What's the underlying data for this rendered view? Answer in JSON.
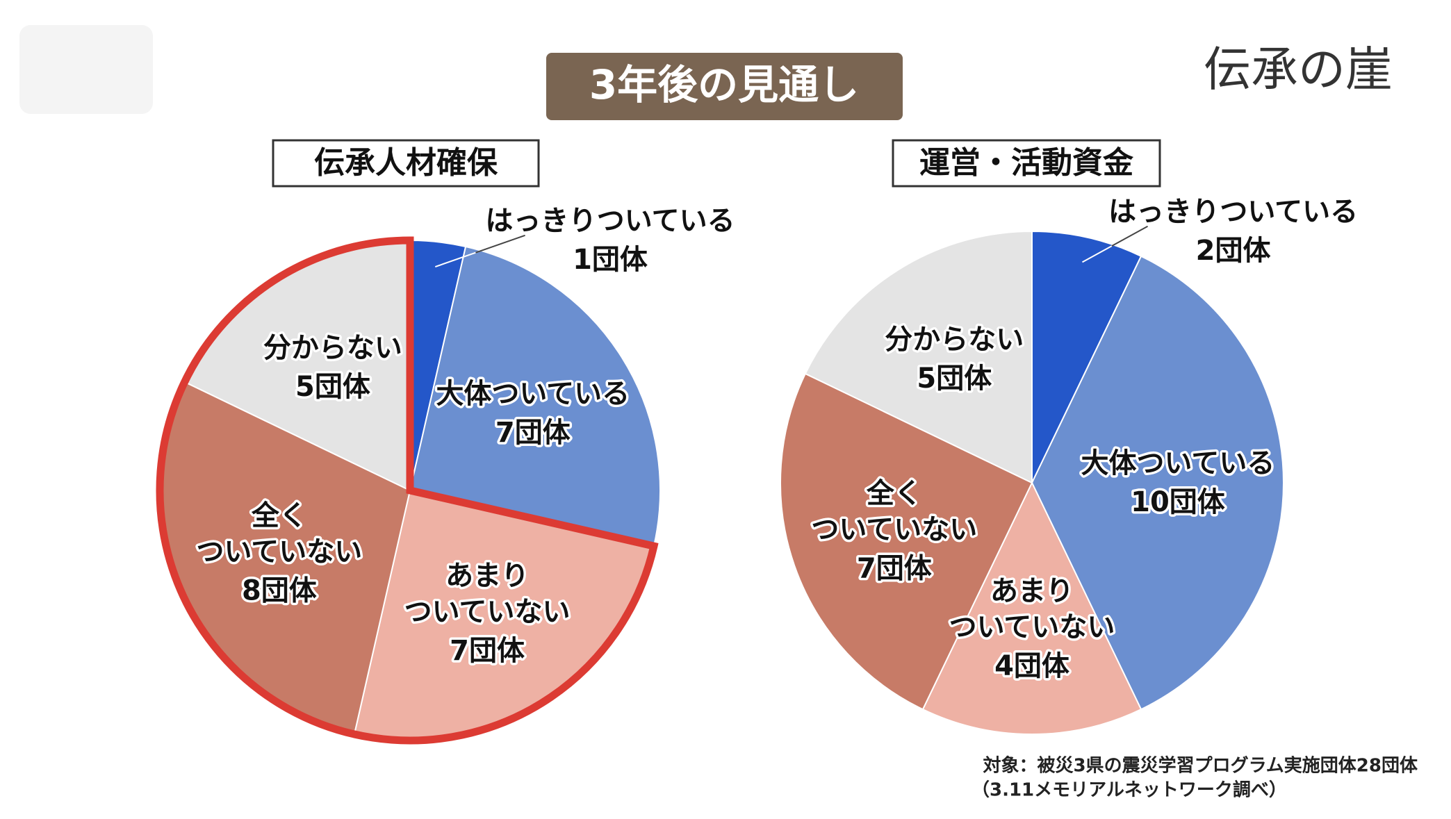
{
  "header": {
    "title": "3年後の見通し",
    "logo": "伝承の崖"
  },
  "chart_data": [
    {
      "type": "pie",
      "title": "伝承人材確保",
      "categories": [
        "はっきりついている",
        "大体ついている",
        "あまり\nついていない",
        "全く\nついていない",
        "分からない"
      ],
      "values": [
        1,
        7,
        7,
        8,
        5
      ],
      "value_labels": [
        "1団体",
        "7団体",
        "7団体",
        "8団体",
        "5団体"
      ],
      "colors": [
        "#2457c9",
        "#6b8fd0",
        "#eeb1a4",
        "#c77b67",
        "#e4e4e4"
      ],
      "highlighted": [
        false,
        false,
        true,
        true,
        true
      ],
      "highlight_color": "#dc3b33"
    },
    {
      "type": "pie",
      "title": "運営・活動資金",
      "categories": [
        "はっきりついている",
        "大体ついている",
        "あまり\nついていない",
        "全く\nついていない",
        "分からない"
      ],
      "values": [
        2,
        10,
        4,
        7,
        5
      ],
      "value_labels": [
        "2団体",
        "10団体",
        "4団体",
        "7団体",
        "5団体"
      ],
      "colors": [
        "#2457c9",
        "#6b8fd0",
        "#eeb1a4",
        "#c77b67",
        "#e4e4e4"
      ]
    }
  ],
  "footnote": [
    "対象：被災3県の震災学習プログラム実施団体28団体",
    "（3.11メモリアルネットワーク調べ）"
  ]
}
